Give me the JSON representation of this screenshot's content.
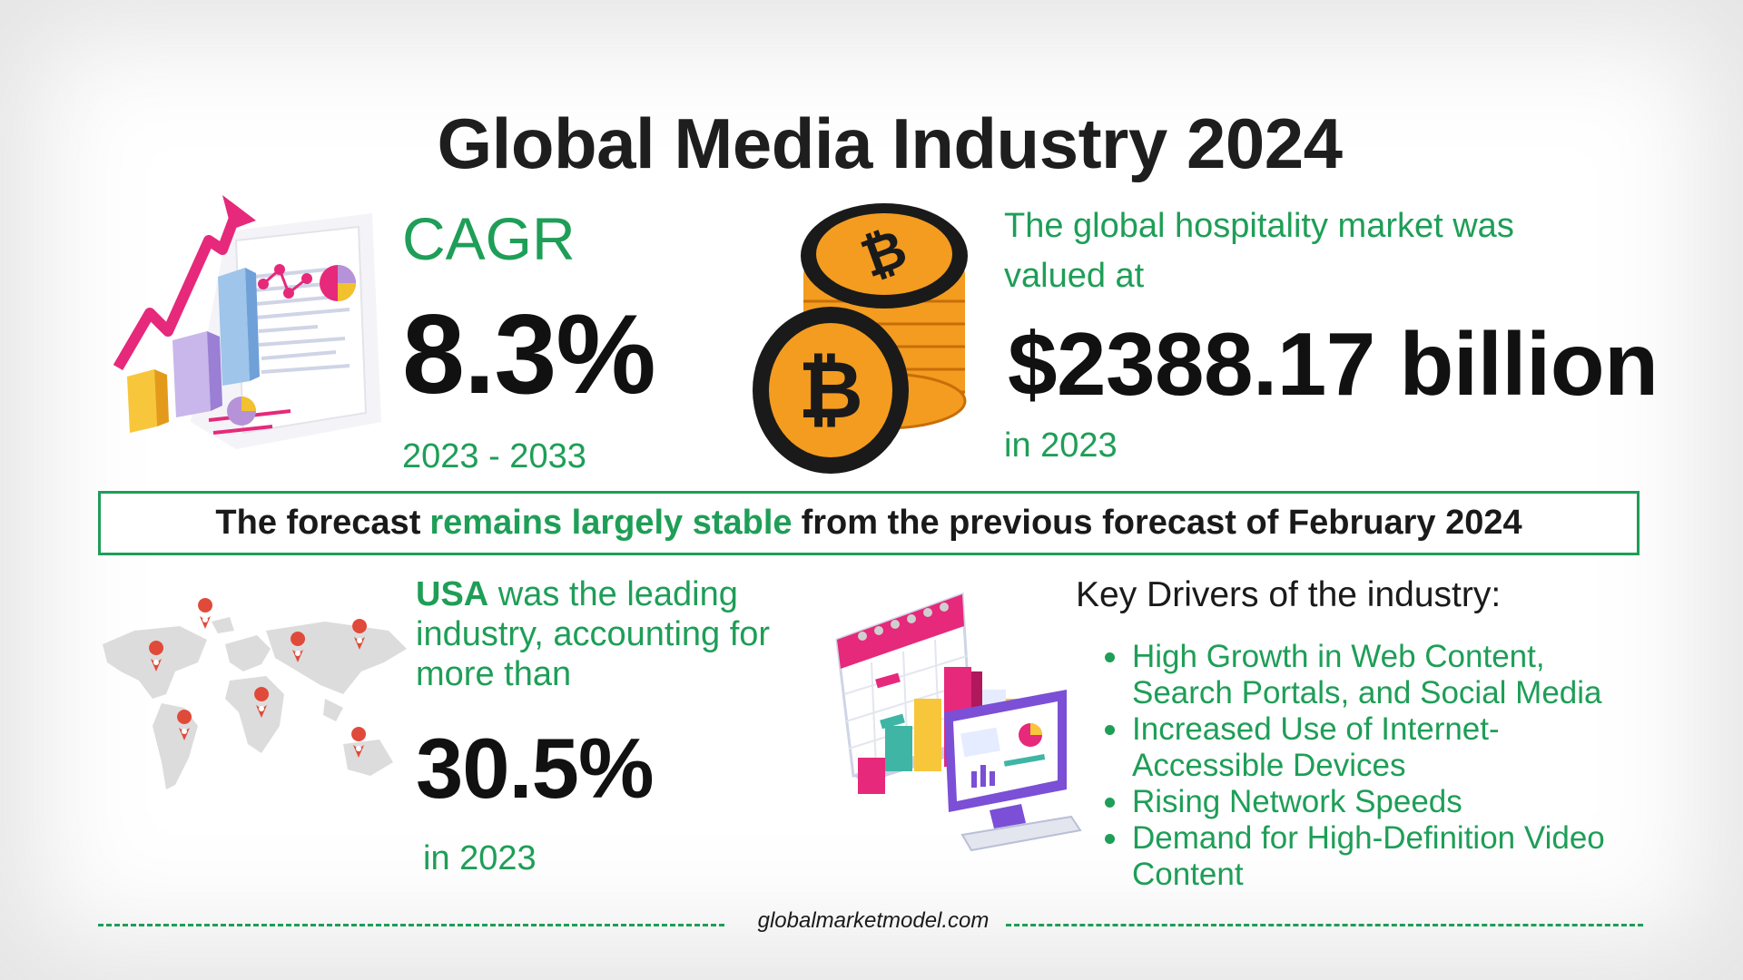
{
  "title": "Global Media Industry 2024",
  "cagr": {
    "label": "CAGR",
    "value": "8.3%",
    "period": "2023 - 2033"
  },
  "valuation": {
    "text": "The global hospitality market was valued at",
    "amount": "$2388.17 billion",
    "year": "in 2023"
  },
  "forecast": {
    "prefix": "The forecast",
    "highlight": "remains largely stable",
    "suffix": "from the previous forecast of February 2024"
  },
  "usa": {
    "lead": "USA",
    "text": "was the leading industry, accounting for more than",
    "value": "30.5%",
    "year": "in 2023"
  },
  "drivers": {
    "title": "Key Drivers of the industry:",
    "items": [
      "High Growth in Web Content, Search Portals, and Social Media",
      "Increased Use of Internet-Accessible Devices",
      "Rising Network Speeds",
      "Demand for High-Definition Video Content"
    ]
  },
  "footer": {
    "site": "globalmarketmodel.com"
  },
  "colors": {
    "accent": "#1e9e57",
    "text": "#111111",
    "coin": "#f39c1f",
    "pink": "#e6297a",
    "map": "#d9d9d9",
    "pin": "#e04a3a"
  },
  "icons": [
    "growth-chart-icon",
    "bitcoin-coins-icon",
    "world-map-icon",
    "calendar-dashboard-icon"
  ]
}
